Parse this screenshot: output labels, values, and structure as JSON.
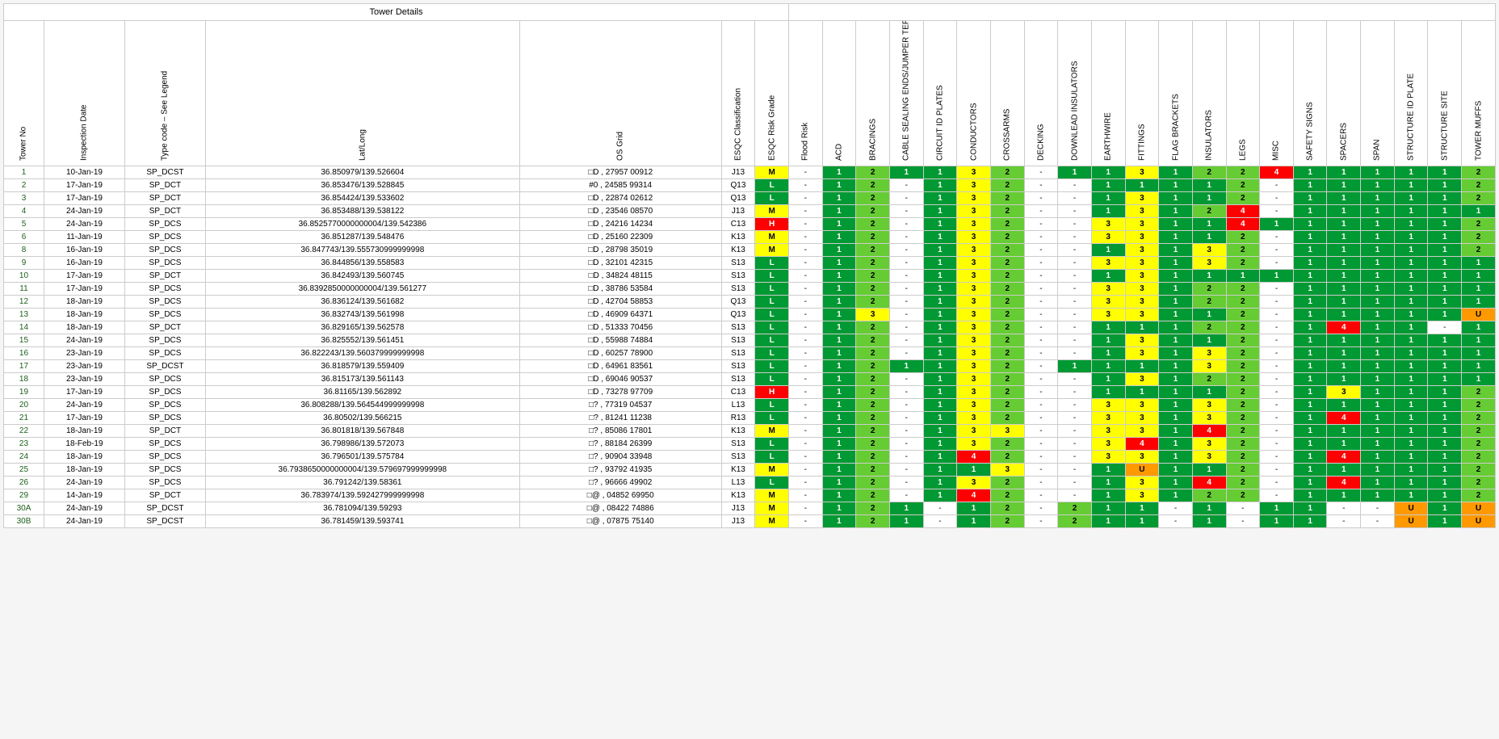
{
  "colors": {
    "L": "#009933",
    "M": "#ffff00",
    "H": "#ff0000",
    "1": "#009933",
    "2": "#66cc33",
    "3": "#ffff00",
    "4": "#ff0000",
    "U": "#ff9900",
    "-": "#ffffff"
  },
  "groupHeader": "Tower Details",
  "headers": {
    "tower_no": "Tower No",
    "inspection_date": "Inspection Date",
    "type_code": "Type code – See Legend",
    "lat_long": "Lat/Long",
    "os_grid": "OS Grid",
    "esqc_class": "ESQC Classification",
    "esqc_risk": "ESQC Risk Grade",
    "flood_risk": "Flood Risk"
  },
  "conditionCols": [
    "ACD",
    "BRACINGS",
    "CABLE SEALING ENDS/JUMPER TERMINATIO",
    "CIRCUIT ID PLATES",
    "CONDUCTORS",
    "CROSSARMS",
    "DECKING",
    "DOWNLEAD INSULATORS",
    "EARTHWIRE",
    "FITTINGS",
    "FLAG BRACKETS",
    "INSULATORS",
    "LEGS",
    "MISC",
    "SAFETY SIGNS",
    "SPACERS",
    "SPAN",
    "STRUCTURE ID PLATE",
    "STRUCTURE SITE",
    "TOWER MUFFS"
  ],
  "rows": [
    {
      "no": "1",
      "date": "10-Jan-19",
      "type": "SP_DCST",
      "lat": "36.850979/139.526604",
      "os": "□D , 27957 00912",
      "esqc": "J13",
      "risk": "M",
      "flood": "-",
      "c": [
        "1",
        "2",
        "1",
        "1",
        "3",
        "2",
        "-",
        "1",
        "1",
        "3",
        "1",
        "2",
        "2",
        "4",
        "1",
        "1",
        "1",
        "1",
        "1",
        "2"
      ]
    },
    {
      "no": "2",
      "date": "17-Jan-19",
      "type": "SP_DCT",
      "lat": "36.853476/139.528845",
      "os": "#0 , 24585 99314",
      "esqc": "Q13",
      "risk": "L",
      "flood": "-",
      "c": [
        "1",
        "2",
        "-",
        "1",
        "3",
        "2",
        "-",
        "-",
        "1",
        "1",
        "1",
        "1",
        "2",
        "-",
        "1",
        "1",
        "1",
        "1",
        "1",
        "2"
      ]
    },
    {
      "no": "3",
      "date": "17-Jan-19",
      "type": "SP_DCT",
      "lat": "36.854424/139.533602",
      "os": "□D , 22874 02612",
      "esqc": "Q13",
      "risk": "L",
      "flood": "-",
      "c": [
        "1",
        "2",
        "-",
        "1",
        "3",
        "2",
        "-",
        "-",
        "1",
        "3",
        "1",
        "1",
        "2",
        "-",
        "1",
        "1",
        "1",
        "1",
        "1",
        "2"
      ]
    },
    {
      "no": "4",
      "date": "24-Jan-19",
      "type": "SP_DCT",
      "lat": "36.853488/139.538122",
      "os": "□D , 23546 08570",
      "esqc": "J13",
      "risk": "M",
      "flood": "-",
      "c": [
        "1",
        "2",
        "-",
        "1",
        "3",
        "2",
        "-",
        "-",
        "1",
        "3",
        "1",
        "2",
        "4",
        "-",
        "1",
        "1",
        "1",
        "1",
        "1",
        "1"
      ]
    },
    {
      "no": "5",
      "date": "24-Jan-19",
      "type": "SP_DCS",
      "lat": "36.8525770000000004/139.542386",
      "os": "□D , 24216 14234",
      "esqc": "C13",
      "risk": "H",
      "flood": "-",
      "c": [
        "1",
        "2",
        "-",
        "1",
        "3",
        "2",
        "-",
        "-",
        "3",
        "3",
        "1",
        "1",
        "4",
        "1",
        "1",
        "1",
        "1",
        "1",
        "1",
        "2"
      ]
    },
    {
      "no": "6",
      "date": "11-Jan-19",
      "type": "SP_DCS",
      "lat": "36.851287/139.548476",
      "os": "□D , 25160 22309",
      "esqc": "K13",
      "risk": "M",
      "flood": "-",
      "c": [
        "1",
        "2",
        "-",
        "1",
        "3",
        "2",
        "-",
        "-",
        "3",
        "3",
        "1",
        "1",
        "2",
        "-",
        "1",
        "1",
        "1",
        "1",
        "1",
        "2"
      ]
    },
    {
      "no": "8",
      "date": "16-Jan-19",
      "type": "SP_DCS",
      "lat": "36.847743/139.555730999999998",
      "os": "□D , 28798 35019",
      "esqc": "K13",
      "risk": "M",
      "flood": "-",
      "c": [
        "1",
        "2",
        "-",
        "1",
        "3",
        "2",
        "-",
        "-",
        "1",
        "3",
        "1",
        "3",
        "2",
        "-",
        "1",
        "1",
        "1",
        "1",
        "1",
        "2"
      ]
    },
    {
      "no": "9",
      "date": "16-Jan-19",
      "type": "SP_DCS",
      "lat": "36.844856/139.558583",
      "os": "□D , 32101 42315",
      "esqc": "S13",
      "risk": "L",
      "flood": "-",
      "c": [
        "1",
        "2",
        "-",
        "1",
        "3",
        "2",
        "-",
        "-",
        "3",
        "3",
        "1",
        "3",
        "2",
        "-",
        "1",
        "1",
        "1",
        "1",
        "1",
        "1"
      ]
    },
    {
      "no": "10",
      "date": "17-Jan-19",
      "type": "SP_DCT",
      "lat": "36.842493/139.560745",
      "os": "□D , 34824 48115",
      "esqc": "S13",
      "risk": "L",
      "flood": "-",
      "c": [
        "1",
        "2",
        "-",
        "1",
        "3",
        "2",
        "-",
        "-",
        "1",
        "3",
        "1",
        "1",
        "1",
        "1",
        "1",
        "1",
        "1",
        "1",
        "1",
        "1"
      ]
    },
    {
      "no": "11",
      "date": "17-Jan-19",
      "type": "SP_DCS",
      "lat": "36.8392850000000004/139.561277",
      "os": "□D , 38786 53584",
      "esqc": "S13",
      "risk": "L",
      "flood": "-",
      "c": [
        "1",
        "2",
        "-",
        "1",
        "3",
        "2",
        "-",
        "-",
        "3",
        "3",
        "1",
        "2",
        "2",
        "-",
        "1",
        "1",
        "1",
        "1",
        "1",
        "1"
      ]
    },
    {
      "no": "12",
      "date": "18-Jan-19",
      "type": "SP_DCS",
      "lat": "36.836124/139.561682",
      "os": "□D , 42704 58853",
      "esqc": "Q13",
      "risk": "L",
      "flood": "-",
      "c": [
        "1",
        "2",
        "-",
        "1",
        "3",
        "2",
        "-",
        "-",
        "3",
        "3",
        "1",
        "2",
        "2",
        "-",
        "1",
        "1",
        "1",
        "1",
        "1",
        "1"
      ]
    },
    {
      "no": "13",
      "date": "18-Jan-19",
      "type": "SP_DCS",
      "lat": "36.832743/139.561998",
      "os": "□D , 46909 64371",
      "esqc": "Q13",
      "risk": "L",
      "flood": "-",
      "c": [
        "1",
        "3",
        "-",
        "1",
        "3",
        "2",
        "-",
        "-",
        "3",
        "3",
        "1",
        "1",
        "2",
        "-",
        "1",
        "1",
        "1",
        "1",
        "1",
        "U"
      ]
    },
    {
      "no": "14",
      "date": "18-Jan-19",
      "type": "SP_DCT",
      "lat": "36.829165/139.562578",
      "os": "□D , 51333 70456",
      "esqc": "S13",
      "risk": "L",
      "flood": "-",
      "c": [
        "1",
        "2",
        "-",
        "1",
        "3",
        "2",
        "-",
        "-",
        "1",
        "1",
        "1",
        "2",
        "2",
        "-",
        "1",
        "4",
        "1",
        "1",
        "-",
        "1"
      ]
    },
    {
      "no": "15",
      "date": "24-Jan-19",
      "type": "SP_DCS",
      "lat": "36.825552/139.561451",
      "os": "□D , 55988 74884",
      "esqc": "S13",
      "risk": "L",
      "flood": "-",
      "c": [
        "1",
        "2",
        "-",
        "1",
        "3",
        "2",
        "-",
        "-",
        "1",
        "3",
        "1",
        "1",
        "2",
        "-",
        "1",
        "1",
        "1",
        "1",
        "1",
        "1"
      ]
    },
    {
      "no": "16",
      "date": "23-Jan-19",
      "type": "SP_DCS",
      "lat": "36.822243/139.560379999999998",
      "os": "□D , 60257 78900",
      "esqc": "S13",
      "risk": "L",
      "flood": "-",
      "c": [
        "1",
        "2",
        "-",
        "1",
        "3",
        "2",
        "-",
        "-",
        "1",
        "3",
        "1",
        "3",
        "2",
        "-",
        "1",
        "1",
        "1",
        "1",
        "1",
        "1"
      ]
    },
    {
      "no": "17",
      "date": "23-Jan-19",
      "type": "SP_DCST",
      "lat": "36.818579/139.559409",
      "os": "□D , 64961 83561",
      "esqc": "S13",
      "risk": "L",
      "flood": "-",
      "c": [
        "1",
        "2",
        "1",
        "1",
        "3",
        "2",
        "-",
        "1",
        "1",
        "1",
        "1",
        "3",
        "2",
        "-",
        "1",
        "1",
        "1",
        "1",
        "1",
        "1"
      ]
    },
    {
      "no": "18",
      "date": "23-Jan-19",
      "type": "SP_DCS",
      "lat": "36.815173/139.561143",
      "os": "□D , 69046 90537",
      "esqc": "S13",
      "risk": "L",
      "flood": "-",
      "c": [
        "1",
        "2",
        "-",
        "1",
        "3",
        "2",
        "-",
        "-",
        "1",
        "3",
        "1",
        "2",
        "2",
        "-",
        "1",
        "1",
        "1",
        "1",
        "1",
        "1"
      ]
    },
    {
      "no": "19",
      "date": "17-Jan-19",
      "type": "SP_DCS",
      "lat": "36.81165/139.562892",
      "os": "□D , 73278 97709",
      "esqc": "C13",
      "risk": "H",
      "flood": "-",
      "c": [
        "1",
        "2",
        "-",
        "1",
        "3",
        "2",
        "-",
        "-",
        "1",
        "1",
        "1",
        "1",
        "2",
        "-",
        "1",
        "3",
        "1",
        "1",
        "1",
        "2"
      ]
    },
    {
      "no": "20",
      "date": "24-Jan-19",
      "type": "SP_DCS",
      "lat": "36.808288/139.564544999999998",
      "os": "□? , 77319 04537",
      "esqc": "L13",
      "risk": "L",
      "flood": "-",
      "c": [
        "1",
        "2",
        "-",
        "1",
        "3",
        "2",
        "-",
        "-",
        "3",
        "3",
        "1",
        "3",
        "2",
        "-",
        "1",
        "1",
        "1",
        "1",
        "1",
        "2"
      ]
    },
    {
      "no": "21",
      "date": "17-Jan-19",
      "type": "SP_DCS",
      "lat": "36.80502/139.566215",
      "os": "□? , 81241 11238",
      "esqc": "R13",
      "risk": "L",
      "flood": "-",
      "c": [
        "1",
        "2",
        "-",
        "1",
        "3",
        "2",
        "-",
        "-",
        "3",
        "3",
        "1",
        "3",
        "2",
        "-",
        "1",
        "4",
        "1",
        "1",
        "1",
        "2"
      ]
    },
    {
      "no": "22",
      "date": "18-Jan-19",
      "type": "SP_DCT",
      "lat": "36.801818/139.567848",
      "os": "□? , 85086 17801",
      "esqc": "K13",
      "risk": "M",
      "flood": "-",
      "c": [
        "1",
        "2",
        "-",
        "1",
        "3",
        "3",
        "-",
        "-",
        "3",
        "3",
        "1",
        "4",
        "2",
        "-",
        "1",
        "1",
        "1",
        "1",
        "1",
        "2"
      ]
    },
    {
      "no": "23",
      "date": "18-Feb-19",
      "type": "SP_DCS",
      "lat": "36.798986/139.572073",
      "os": "□? , 88184 26399",
      "esqc": "S13",
      "risk": "L",
      "flood": "-",
      "c": [
        "1",
        "2",
        "-",
        "1",
        "3",
        "2",
        "-",
        "-",
        "3",
        "4",
        "1",
        "3",
        "2",
        "-",
        "1",
        "1",
        "1",
        "1",
        "1",
        "2"
      ]
    },
    {
      "no": "24",
      "date": "18-Jan-19",
      "type": "SP_DCS",
      "lat": "36.796501/139.575784",
      "os": "□? , 90904 33948",
      "esqc": "S13",
      "risk": "L",
      "flood": "-",
      "c": [
        "1",
        "2",
        "-",
        "1",
        "4",
        "2",
        "-",
        "-",
        "3",
        "3",
        "1",
        "3",
        "2",
        "-",
        "1",
        "4",
        "1",
        "1",
        "1",
        "2"
      ]
    },
    {
      "no": "25",
      "date": "18-Jan-19",
      "type": "SP_DCS",
      "lat": "36.7938650000000004/139.579697999999998",
      "os": "□? , 93792 41935",
      "esqc": "K13",
      "risk": "M",
      "flood": "-",
      "c": [
        "1",
        "2",
        "-",
        "1",
        "1",
        "3",
        "-",
        "-",
        "1",
        "U",
        "1",
        "1",
        "2",
        "-",
        "1",
        "1",
        "1",
        "1",
        "1",
        "2"
      ]
    },
    {
      "no": "26",
      "date": "24-Jan-19",
      "type": "SP_DCS",
      "lat": "36.791242/139.58361",
      "os": "□? , 96666 49902",
      "esqc": "L13",
      "risk": "L",
      "flood": "-",
      "c": [
        "1",
        "2",
        "-",
        "1",
        "3",
        "2",
        "-",
        "-",
        "1",
        "3",
        "1",
        "4",
        "2",
        "-",
        "1",
        "4",
        "1",
        "1",
        "1",
        "2"
      ]
    },
    {
      "no": "29",
      "date": "14-Jan-19",
      "type": "SP_DCT",
      "lat": "36.783974/139.592427999999998",
      "os": "□@ , 04852 69950",
      "esqc": "K13",
      "risk": "M",
      "flood": "-",
      "c": [
        "1",
        "2",
        "-",
        "1",
        "4",
        "2",
        "-",
        "-",
        "1",
        "3",
        "1",
        "2",
        "2",
        "-",
        "1",
        "1",
        "1",
        "1",
        "1",
        "2"
      ]
    },
    {
      "no": "30A",
      "date": "24-Jan-19",
      "type": "SP_DCST",
      "lat": "36.781094/139.59293",
      "os": "□@ , 08422 74886",
      "esqc": "J13",
      "risk": "M",
      "flood": "-",
      "c": [
        "1",
        "2",
        "1",
        "-",
        "1",
        "2",
        "-",
        "2",
        "1",
        "1",
        "-",
        "1",
        "-",
        "1",
        "1",
        "-",
        "-",
        "U",
        "1",
        "U"
      ]
    },
    {
      "no": "30B",
      "date": "24-Jan-19",
      "type": "SP_DCST",
      "lat": "36.781459/139.593741",
      "os": "□@ , 07875 75140",
      "esqc": "J13",
      "risk": "M",
      "flood": "-",
      "c": [
        "1",
        "2",
        "1",
        "-",
        "1",
        "2",
        "-",
        "2",
        "1",
        "1",
        "-",
        "1",
        "-",
        "1",
        "1",
        "-",
        "-",
        "U",
        "1",
        "U"
      ]
    }
  ]
}
